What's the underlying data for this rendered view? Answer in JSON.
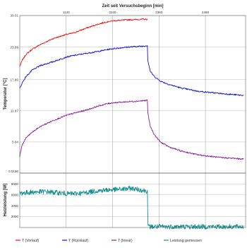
{
  "chart_data": [
    {
      "type": "line",
      "title": "",
      "xlabel": "Zeit seit Versuchsbeginn [min]",
      "ylabel": "Temperatur [°C]",
      "x_tick_labels": [
        "1120",
        "2240",
        "3360",
        "4480"
      ],
      "x_ticks": [
        1120,
        2240,
        3360,
        4480
      ],
      "xlim": [
        0,
        5450
      ],
      "y_tick_labels": [
        "0.0136",
        "5.94",
        "11.87",
        "17.80",
        "23.99",
        "30.01"
      ],
      "y_ticks": [
        0.0136,
        5.94,
        11.87,
        17.8,
        23.99,
        30.01
      ],
      "ylim": [
        0.0136,
        30.01
      ],
      "grid": true,
      "series": [
        {
          "name": "T (Vorlauf)",
          "color": "#ee1111",
          "x": [
            0,
            60,
            150,
            300,
            500,
            800,
            1120,
            1300,
            1600,
            1900,
            2100,
            2240,
            2600,
            3000,
            3080,
            3090,
            3150,
            3250,
            3400,
            3600,
            3900,
            4300,
            4800,
            5400
          ],
          "y": [
            20.3,
            21.5,
            22.6,
            23.6,
            24.5,
            25.6,
            26.4,
            26.7,
            27.6,
            28.4,
            28.8,
            29.0,
            29.2,
            29.3,
            29.3,
            null,
            null,
            null,
            null,
            null,
            null,
            null,
            null,
            null
          ]
        },
        {
          "name": "T (Rücklauf)",
          "color": "#1111dd",
          "x": [
            0,
            60,
            150,
            300,
            500,
            800,
            1120,
            1300,
            1600,
            1900,
            2100,
            2240,
            2600,
            3000,
            3080,
            3090,
            3150,
            3250,
            3400,
            3600,
            3900,
            4300,
            4800,
            5400
          ],
          "y": [
            16.1,
            17.2,
            18.4,
            19.6,
            20.5,
            21.2,
            22.1,
            22.4,
            22.8,
            23.2,
            23.5,
            23.7,
            24.0,
            24.2,
            24.3,
            21.5,
            19.4,
            18.4,
            17.5,
            16.9,
            16.2,
            15.6,
            15.2,
            14.8
          ]
        },
        {
          "name": "T (linear)",
          "color": "#8b1a9b",
          "x": [
            0,
            60,
            150,
            300,
            500,
            800,
            1120,
            1300,
            1600,
            1900,
            2100,
            2240,
            2600,
            3000,
            3080,
            3090,
            3150,
            3250,
            3400,
            3600,
            3900,
            4300,
            4800,
            5400
          ],
          "y": [
            3.2,
            5.4,
            6.7,
            7.8,
            8.9,
            10.0,
            11.0,
            11.4,
            12.0,
            12.8,
            13.2,
            13.4,
            13.6,
            13.8,
            13.9,
            11.5,
            8.9,
            7.3,
            5.9,
            5.0,
            4.2,
            3.5,
            3.0,
            2.7
          ]
        }
      ]
    },
    {
      "type": "line",
      "title": "",
      "xlabel": "",
      "ylabel": "Heizleistung [W]",
      "x_tick_labels": [],
      "xlim": [
        0,
        5450
      ],
      "y_tick_labels": [
        "2000",
        "4000",
        "6000",
        "8000"
      ],
      "y_ticks": [
        2000,
        4000,
        6000,
        8000
      ],
      "ylim": [
        0,
        10000
      ],
      "grid": true,
      "series": [
        {
          "name": "Leistung gemessen",
          "color": "#138f8f",
          "x": [
            0,
            300,
            600,
            900,
            1200,
            1500,
            1800,
            2100,
            2400,
            2700,
            3000,
            3080,
            3095,
            3400,
            4000,
            4500,
            5000,
            5400
          ],
          "y": [
            6300,
            6500,
            6600,
            6400,
            6200,
            6300,
            6700,
            6900,
            7000,
            7200,
            6800,
            6700,
            150,
            150,
            150,
            150,
            150,
            150
          ]
        }
      ]
    }
  ],
  "legend": {
    "placement": "bottom",
    "entries": [
      {
        "label": "T (Vorlauf)",
        "color": "#ee1111"
      },
      {
        "label": "T (Rücklauf)",
        "color": "#1111dd"
      },
      {
        "label": "T (linear)",
        "color": "#8b1a9b"
      },
      {
        "label": "Leistung gemessen",
        "color": "#138f8f"
      }
    ]
  }
}
